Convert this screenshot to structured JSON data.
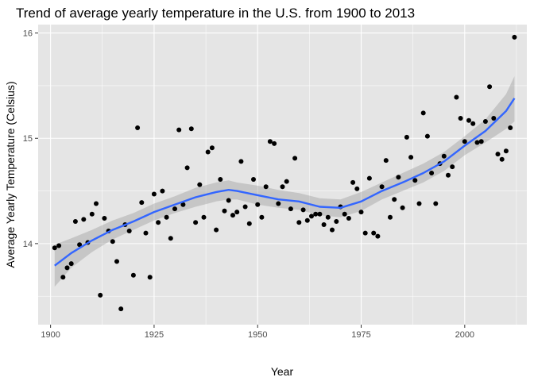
{
  "chart_data": {
    "type": "scatter",
    "title": "Trend of average yearly temperature in the U.S. from 1900 to 2013",
    "xlabel": "Year",
    "ylabel": "Average Yearly Temperature (Celsius)",
    "xlim": [
      1897,
      2015
    ],
    "ylim": [
      13.23,
      16.08
    ],
    "xticks": [
      1900,
      1925,
      1950,
      1975,
      2000
    ],
    "yticks": [
      14,
      15,
      16
    ],
    "grid": true,
    "legend": "none",
    "colors": {
      "panel": "#e5e5e5",
      "grid": "#ffffff",
      "point": "#000000",
      "smooth_line": "#3366ff",
      "ribbon": "#999999"
    },
    "points": [
      [
        1901,
        13.96
      ],
      [
        1902,
        13.98
      ],
      [
        1903,
        13.68
      ],
      [
        1904,
        13.77
      ],
      [
        1905,
        13.81
      ],
      [
        1906,
        14.21
      ],
      [
        1907,
        13.99
      ],
      [
        1908,
        14.23
      ],
      [
        1909,
        14.01
      ],
      [
        1910,
        14.28
      ],
      [
        1911,
        14.38
      ],
      [
        1912,
        13.51
      ],
      [
        1913,
        14.24
      ],
      [
        1914,
        14.12
      ],
      [
        1915,
        14.02
      ],
      [
        1916,
        13.83
      ],
      [
        1917,
        13.38
      ],
      [
        1918,
        14.18
      ],
      [
        1919,
        14.12
      ],
      [
        1920,
        13.7
      ],
      [
        1921,
        15.1
      ],
      [
        1922,
        14.39
      ],
      [
        1923,
        14.1
      ],
      [
        1924,
        13.68
      ],
      [
        1925,
        14.47
      ],
      [
        1926,
        14.2
      ],
      [
        1927,
        14.5
      ],
      [
        1928,
        14.25
      ],
      [
        1929,
        14.05
      ],
      [
        1930,
        14.33
      ],
      [
        1931,
        15.08
      ],
      [
        1932,
        14.37
      ],
      [
        1933,
        14.72
      ],
      [
        1934,
        15.09
      ],
      [
        1935,
        14.2
      ],
      [
        1936,
        14.56
      ],
      [
        1937,
        14.25
      ],
      [
        1938,
        14.87
      ],
      [
        1939,
        14.91
      ],
      [
        1940,
        14.13
      ],
      [
        1941,
        14.61
      ],
      [
        1942,
        14.31
      ],
      [
        1943,
        14.41
      ],
      [
        1944,
        14.27
      ],
      [
        1945,
        14.3
      ],
      [
        1946,
        14.78
      ],
      [
        1947,
        14.35
      ],
      [
        1948,
        14.19
      ],
      [
        1949,
        14.61
      ],
      [
        1950,
        14.37
      ],
      [
        1951,
        14.25
      ],
      [
        1952,
        14.54
      ],
      [
        1953,
        14.97
      ],
      [
        1954,
        14.95
      ],
      [
        1955,
        14.38
      ],
      [
        1956,
        14.54
      ],
      [
        1957,
        14.59
      ],
      [
        1958,
        14.33
      ],
      [
        1959,
        14.81
      ],
      [
        1960,
        14.2
      ],
      [
        1961,
        14.32
      ],
      [
        1962,
        14.22
      ],
      [
        1963,
        14.26
      ],
      [
        1964,
        14.28
      ],
      [
        1965,
        14.28
      ],
      [
        1966,
        14.18
      ],
      [
        1967,
        14.25
      ],
      [
        1968,
        14.13
      ],
      [
        1969,
        14.21
      ],
      [
        1970,
        14.35
      ],
      [
        1971,
        14.28
      ],
      [
        1972,
        14.24
      ],
      [
        1973,
        14.58
      ],
      [
        1974,
        14.52
      ],
      [
        1975,
        14.3
      ],
      [
        1976,
        14.1
      ],
      [
        1977,
        14.62
      ],
      [
        1978,
        14.1
      ],
      [
        1979,
        14.07
      ],
      [
        1980,
        14.54
      ],
      [
        1981,
        14.79
      ],
      [
        1982,
        14.25
      ],
      [
        1983,
        14.42
      ],
      [
        1984,
        14.63
      ],
      [
        1985,
        14.34
      ],
      [
        1986,
        15.01
      ],
      [
        1987,
        14.82
      ],
      [
        1988,
        14.6
      ],
      [
        1989,
        14.38
      ],
      [
        1990,
        15.24
      ],
      [
        1991,
        15.02
      ],
      [
        1992,
        14.67
      ],
      [
        1993,
        14.38
      ],
      [
        1994,
        14.76
      ],
      [
        1995,
        14.83
      ],
      [
        1996,
        14.65
      ],
      [
        1997,
        14.73
      ],
      [
        1998,
        15.39
      ],
      [
        1999,
        15.19
      ],
      [
        2000,
        14.97
      ],
      [
        2001,
        15.17
      ],
      [
        2002,
        15.14
      ],
      [
        2003,
        14.96
      ],
      [
        2004,
        14.97
      ],
      [
        2005,
        15.16
      ],
      [
        2006,
        15.49
      ],
      [
        2007,
        15.19
      ],
      [
        2008,
        14.85
      ],
      [
        2009,
        14.8
      ],
      [
        2010,
        14.88
      ],
      [
        2011,
        15.1
      ],
      [
        2012,
        15.96
      ]
    ],
    "smooth": {
      "method": "loess",
      "x": [
        1901,
        1905,
        1910,
        1915,
        1920,
        1925,
        1930,
        1935,
        1940,
        1943,
        1945,
        1950,
        1955,
        1960,
        1965,
        1970,
        1975,
        1980,
        1985,
        1990,
        1995,
        2000,
        2005,
        2010,
        2012
      ],
      "y": [
        13.79,
        13.91,
        14.03,
        14.13,
        14.21,
        14.3,
        14.37,
        14.44,
        14.49,
        14.51,
        14.5,
        14.46,
        14.42,
        14.4,
        14.35,
        14.34,
        14.4,
        14.5,
        14.58,
        14.67,
        14.78,
        14.93,
        15.07,
        15.26,
        15.38
      ],
      "lower": [
        13.59,
        13.77,
        13.92,
        14.04,
        14.13,
        14.22,
        14.29,
        14.35,
        14.4,
        14.42,
        14.42,
        14.37,
        14.34,
        14.32,
        14.27,
        14.25,
        14.31,
        14.42,
        14.5,
        14.58,
        14.69,
        14.84,
        14.96,
        15.09,
        15.16
      ],
      "upper": [
        13.99,
        14.05,
        14.13,
        14.22,
        14.29,
        14.38,
        14.45,
        14.53,
        14.58,
        14.6,
        14.58,
        14.55,
        14.51,
        14.48,
        14.43,
        14.42,
        14.49,
        14.58,
        14.67,
        14.76,
        14.87,
        15.02,
        15.18,
        15.42,
        15.59
      ]
    }
  }
}
